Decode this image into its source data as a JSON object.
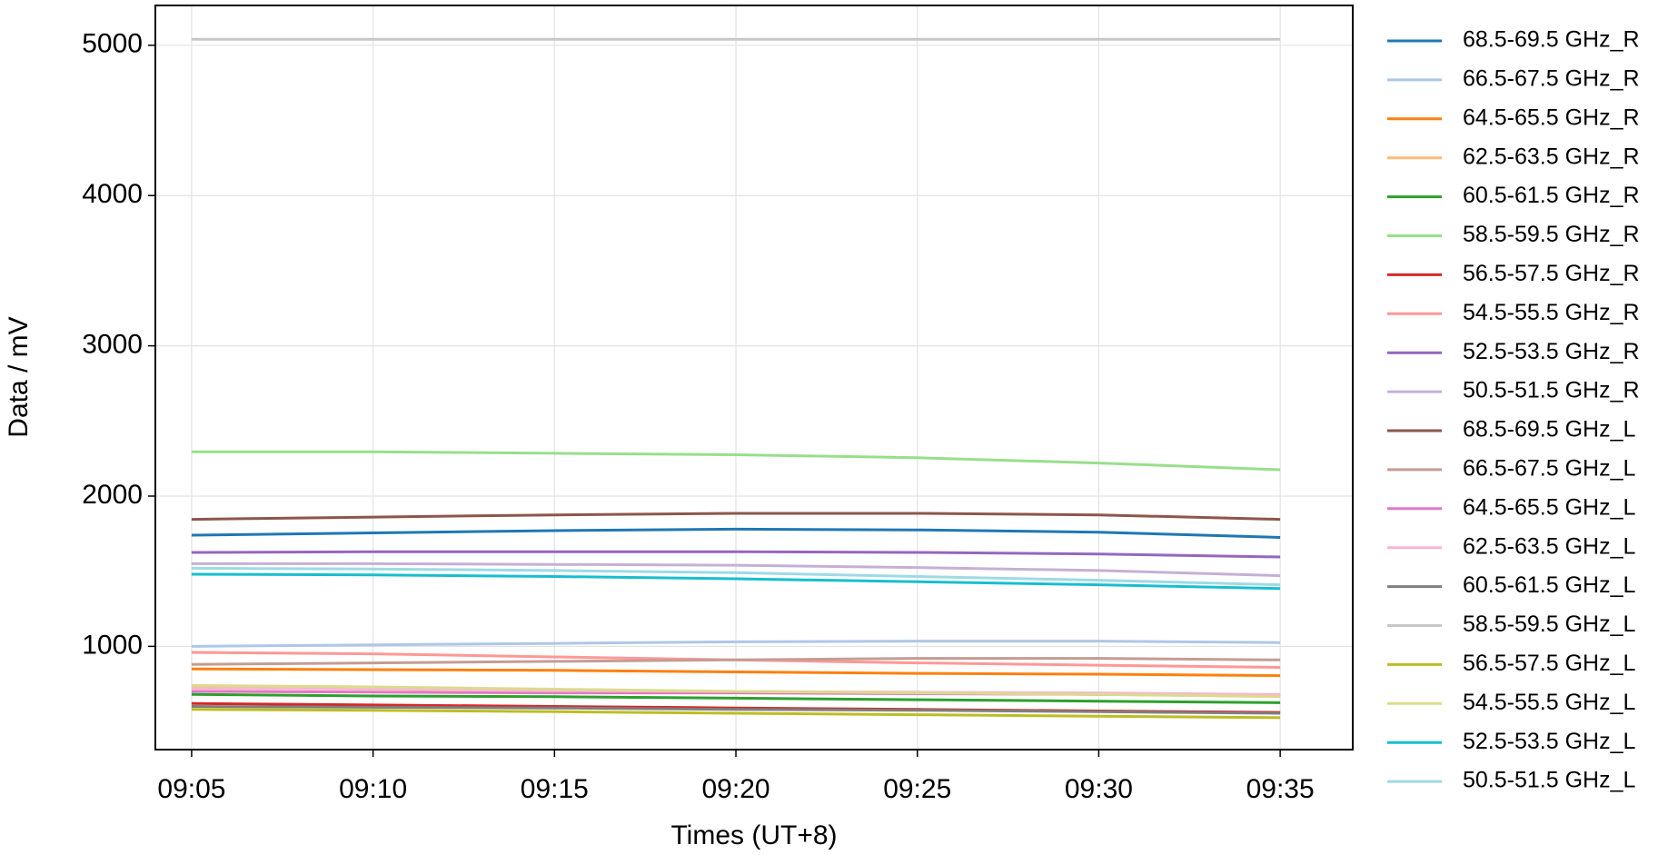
{
  "chart_data": {
    "type": "line",
    "xlabel": "Times (UT+8)",
    "ylabel": "Data / mV",
    "x": [
      "09:05",
      "09:10",
      "09:15",
      "09:20",
      "09:25",
      "09:30",
      "09:35"
    ],
    "xlim": [
      "09:04",
      "09:37"
    ],
    "xticks": [
      "09:05",
      "09:10",
      "09:15",
      "09:20",
      "09:25",
      "09:30",
      "09:35"
    ],
    "ylim": [
      313,
      5265
    ],
    "yticks": [
      1000,
      2000,
      3000,
      4000,
      5000
    ],
    "grid": true,
    "series": [
      {
        "name": "68.5-69.5 GHz_R",
        "color": "#1f77b4",
        "values": [
          1740,
          1755,
          1770,
          1780,
          1775,
          1760,
          1725
        ]
      },
      {
        "name": "66.5-67.5 GHz_R",
        "color": "#aec7e8",
        "values": [
          1000,
          1010,
          1020,
          1030,
          1035,
          1035,
          1025
        ]
      },
      {
        "name": "64.5-65.5 GHz_R",
        "color": "#ff7f0e",
        "values": [
          850,
          845,
          840,
          830,
          820,
          815,
          805
        ]
      },
      {
        "name": "62.5-63.5 GHz_R",
        "color": "#ffbb78",
        "values": [
          730,
          720,
          710,
          700,
          690,
          680,
          670
        ]
      },
      {
        "name": "60.5-61.5 GHz_R",
        "color": "#2ca02c",
        "values": [
          680,
          670,
          665,
          655,
          645,
          635,
          625
        ]
      },
      {
        "name": "58.5-59.5 GHz_R",
        "color": "#98df8a",
        "values": [
          2295,
          2295,
          2285,
          2275,
          2255,
          2220,
          2175
        ]
      },
      {
        "name": "56.5-57.5 GHz_R",
        "color": "#d62728",
        "values": [
          620,
          610,
          600,
          590,
          580,
          570,
          560
        ]
      },
      {
        "name": "54.5-55.5 GHz_R",
        "color": "#ff9896",
        "values": [
          960,
          950,
          930,
          910,
          890,
          875,
          860
        ]
      },
      {
        "name": "52.5-53.5 GHz_R",
        "color": "#9467bd",
        "values": [
          1625,
          1630,
          1630,
          1630,
          1625,
          1615,
          1595
        ]
      },
      {
        "name": "50.5-51.5 GHz_R",
        "color": "#c5b0d5",
        "values": [
          1550,
          1550,
          1545,
          1540,
          1525,
          1505,
          1470
        ]
      },
      {
        "name": "68.5-69.5 GHz_L",
        "color": "#8c564b",
        "values": [
          1845,
          1860,
          1875,
          1885,
          1885,
          1875,
          1845
        ]
      },
      {
        "name": "66.5-67.5 GHz_L",
        "color": "#c49c94",
        "values": [
          880,
          890,
          900,
          910,
          920,
          920,
          910
        ]
      },
      {
        "name": "64.5-65.5 GHz_L",
        "color": "#e377c2",
        "values": [
          700,
          695,
          690,
          690,
          685,
          680,
          675
        ]
      },
      {
        "name": "62.5-63.5 GHz_L",
        "color": "#f7b6d2",
        "values": [
          720,
          715,
          705,
          700,
          695,
          690,
          680
        ]
      },
      {
        "name": "60.5-61.5 GHz_L",
        "color": "#7f7f7f",
        "values": [
          600,
          595,
          590,
          580,
          575,
          565,
          555
        ]
      },
      {
        "name": "58.5-59.5 GHz_L",
        "color": "#c7c7c7",
        "values": [
          5040,
          5040,
          5040,
          5040,
          5040,
          5040,
          5040
        ]
      },
      {
        "name": "56.5-57.5 GHz_L",
        "color": "#bcbd22",
        "values": [
          580,
          575,
          565,
          555,
          545,
          535,
          525
        ]
      },
      {
        "name": "54.5-55.5 GHz_L",
        "color": "#dbdb8d",
        "values": [
          740,
          730,
          715,
          700,
          690,
          680,
          665
        ]
      },
      {
        "name": "52.5-53.5 GHz_L",
        "color": "#17becf",
        "values": [
          1480,
          1475,
          1465,
          1450,
          1430,
          1410,
          1385
        ]
      },
      {
        "name": "50.5-51.5 GHz_L",
        "color": "#9edae5",
        "values": [
          1520,
          1515,
          1505,
          1490,
          1465,
          1440,
          1410
        ]
      }
    ]
  }
}
